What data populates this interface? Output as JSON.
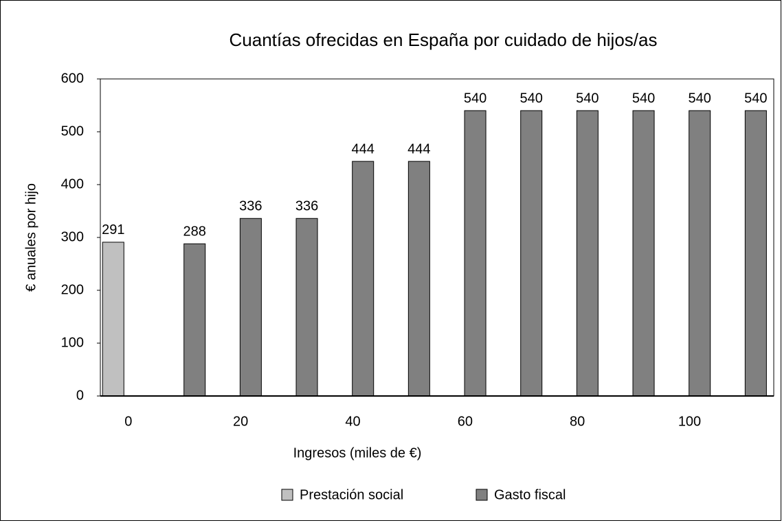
{
  "chart_data": {
    "type": "bar",
    "title": "Cuantías ofrecidas en España por cuidado de hijos/as",
    "x_label": "Ingresos (miles de €)",
    "y_label": "€ anuales por hijo",
    "categories": [
      "0",
      null,
      "20",
      null,
      "40",
      null,
      "60",
      null,
      "80",
      null,
      "100",
      null
    ],
    "series": [
      {
        "name": "Prestación social",
        "color": "#c0c0c0",
        "values": [
          291,
          null,
          null,
          null,
          null,
          null,
          null,
          null,
          null,
          null,
          null,
          null
        ]
      },
      {
        "name": "Gasto fiscal",
        "color": "#808080",
        "values": [
          null,
          288,
          336,
          336,
          444,
          444,
          540,
          540,
          540,
          540,
          540,
          540
        ]
      }
    ],
    "ylim": [
      0,
      600
    ],
    "yticks": [
      0,
      100,
      200,
      300,
      400,
      500,
      600
    ],
    "grid": false,
    "legend": "bottom"
  }
}
